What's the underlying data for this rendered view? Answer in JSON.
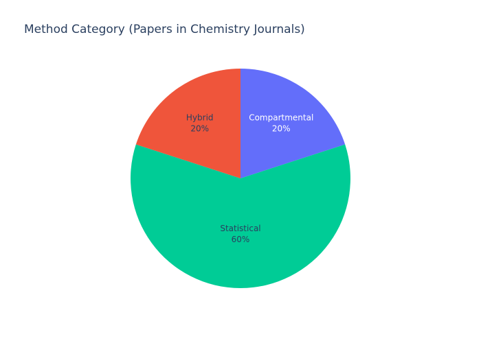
{
  "chart_data": {
    "type": "pie",
    "title": "Method Category (Papers in Chemistry Journals)",
    "slices": [
      {
        "label": "Compartmental",
        "value": 20,
        "percent_label": "20%",
        "color": "#636efa",
        "text_color": "#ffffff"
      },
      {
        "label": "Statistical",
        "value": 60,
        "percent_label": "60%",
        "color": "#00cc96",
        "text_color": "#2a3f5f"
      },
      {
        "label": "Hybrid",
        "value": 20,
        "percent_label": "20%",
        "color": "#ef553b",
        "text_color": "#2a3f5f"
      }
    ],
    "start_angle": "12 o'clock",
    "direction": "clockwise",
    "legend": "none"
  }
}
